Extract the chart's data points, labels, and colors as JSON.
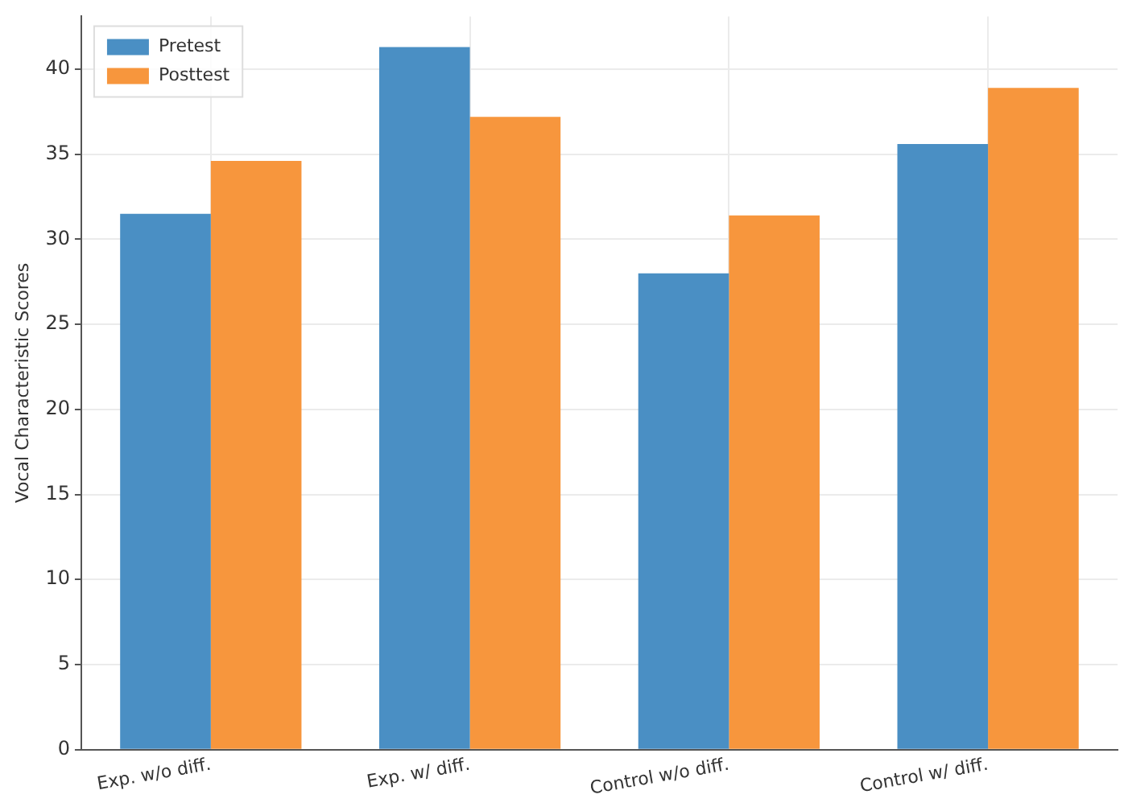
{
  "chart_data": {
    "type": "bar",
    "ylabel": "Vocal Characteristic Scores",
    "categories": [
      "Exp. w/o diff.",
      "Exp. w/ diff.",
      "Control w/o diff.",
      "Control w/ diff."
    ],
    "series": [
      {
        "name": "Pretest",
        "color": "#4a8fc4",
        "values": [
          31.5,
          41.3,
          28.0,
          35.6
        ]
      },
      {
        "name": "Posttest",
        "color": "#f7963d",
        "values": [
          34.6,
          37.2,
          31.4,
          38.9
        ]
      }
    ],
    "ylim": [
      0,
      43.1
    ],
    "yticks": [
      0,
      5,
      10,
      15,
      20,
      25,
      30,
      35,
      40
    ],
    "grid": true,
    "legend": "top left"
  }
}
